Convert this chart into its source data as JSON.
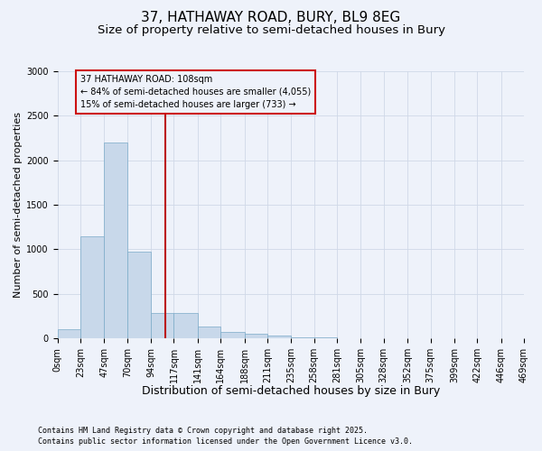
{
  "title": "37, HATHAWAY ROAD, BURY, BL9 8EG",
  "subtitle": "Size of property relative to semi-detached houses in Bury",
  "xlabel": "Distribution of semi-detached houses by size in Bury",
  "ylabel": "Number of semi-detached properties",
  "footnote1": "Contains HM Land Registry data © Crown copyright and database right 2025.",
  "footnote2": "Contains public sector information licensed under the Open Government Licence v3.0.",
  "annotation_title": "37 HATHAWAY ROAD: 108sqm",
  "annotation_line1": "← 84% of semi-detached houses are smaller (4,055)",
  "annotation_line2": "15% of semi-detached houses are larger (733) →",
  "bin_edges": [
    0,
    23,
    47,
    70,
    94,
    117,
    141,
    164,
    188,
    211,
    235,
    258,
    281,
    305,
    328,
    352,
    375,
    399,
    422,
    446,
    469
  ],
  "bar_heights": [
    100,
    1150,
    2200,
    970,
    280,
    280,
    130,
    75,
    50,
    30,
    15,
    10,
    5,
    5,
    2,
    2,
    1,
    1,
    0,
    0
  ],
  "bar_color": "#c8d8ea",
  "bar_edge_color": "#7aaac8",
  "vline_color": "#bb1111",
  "vline_x": 108,
  "grid_color": "#d0d8e8",
  "background_color": "#eef2fa",
  "ylim": [
    0,
    3000
  ],
  "yticks": [
    0,
    500,
    1000,
    1500,
    2000,
    2500,
    3000
  ],
  "title_fontsize": 11,
  "subtitle_fontsize": 9.5,
  "xlabel_fontsize": 9,
  "ylabel_fontsize": 8,
  "tick_fontsize": 7,
  "annot_fontsize": 7,
  "footnote_fontsize": 6,
  "annotation_box_color": "#cc1111",
  "figsize": [
    6.0,
    5.0
  ],
  "dpi": 100
}
